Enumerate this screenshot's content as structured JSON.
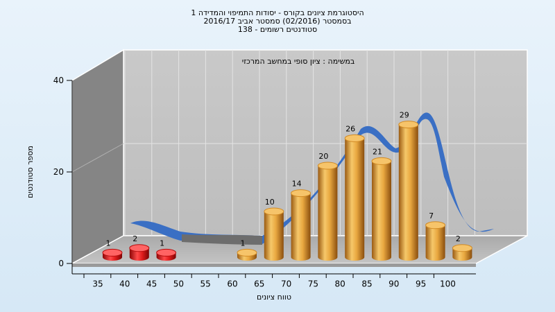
{
  "chart_data": {
    "type": "bar",
    "title_lines": [
      "היסטוגרמת ציונים בקורס - יסודות התמיפוי והמדידה 1",
      "בסמסטר  (02/2016)  סמסטר אביב 2016/17",
      "סטודנטים רשומים - 138"
    ],
    "annotation": "במשימה : ציון סופי במחשב המרכזי",
    "xlabel": "טווח ציונים",
    "ylabel": "מספר סטודנטים",
    "ylim": [
      0,
      40
    ],
    "yticks": [
      "0",
      "20",
      "40"
    ],
    "categories": [
      "35",
      "40",
      "45",
      "50",
      "55",
      "60",
      "65",
      "70",
      "75",
      "80",
      "85",
      "90",
      "95",
      "100"
    ],
    "values": [
      1,
      2,
      1,
      0,
      0,
      1,
      10,
      14,
      20,
      26,
      21,
      29,
      7,
      2
    ],
    "colors": {
      "failing": "#d81818",
      "passing": "#e8a53c",
      "curve": "#3a6fc4",
      "curve_low": "#6d6d6d"
    },
    "grid": true
  }
}
